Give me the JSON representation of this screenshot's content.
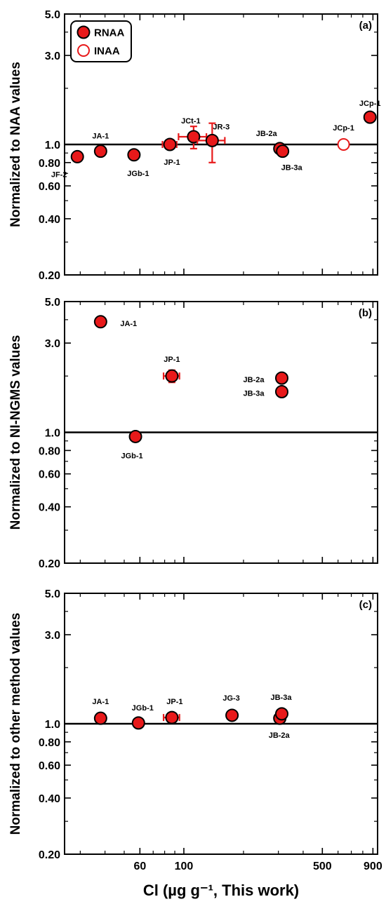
{
  "chart_data": [
    {
      "panel": "(a)",
      "type": "scatter",
      "ylabel": "Normalized to NAA values",
      "xscale": "log",
      "yscale": "log",
      "xlim": [
        25,
        950
      ],
      "ylim": [
        0.2,
        5.0
      ],
      "reference_line": 1.0,
      "legend": {
        "position": "top-left",
        "entries": [
          {
            "name": "RNAA",
            "style": "filled"
          },
          {
            "name": "INAA",
            "style": "open"
          }
        ]
      },
      "points": [
        {
          "label": "JF-2",
          "x": 29,
          "y": 0.86,
          "method": "RNAA"
        },
        {
          "label": "JA-1",
          "x": 38,
          "y": 0.92,
          "method": "RNAA"
        },
        {
          "label": "JGb-1",
          "x": 56,
          "y": 0.88,
          "method": "RNAA"
        },
        {
          "label": "JP-1",
          "x": 85,
          "y": 1.0,
          "method": "RNAA",
          "xerr": 7,
          "yerr": 0.05
        },
        {
          "label": "JCt-1",
          "x": 112,
          "y": 1.1,
          "method": "RNAA",
          "xerr": 18,
          "yerr": 0.15
        },
        {
          "label": "JR-3",
          "x": 139,
          "y": 1.05,
          "method": "RNAA",
          "xerr": 22,
          "yerr": 0.25
        },
        {
          "label": "JB-2a",
          "x": 305,
          "y": 0.95,
          "method": "RNAA"
        },
        {
          "label": "JB-3a",
          "x": 315,
          "y": 0.92,
          "method": "RNAA"
        },
        {
          "label": "JCp-1",
          "x": 640,
          "y": 1.0,
          "method": "INAA"
        },
        {
          "label": "JCp-1",
          "x": 870,
          "y": 1.4,
          "method": "RNAA"
        }
      ]
    },
    {
      "panel": "(b)",
      "type": "scatter",
      "ylabel": "Normalized to NI-NGMS values",
      "xscale": "log",
      "yscale": "log",
      "xlim": [
        25,
        950
      ],
      "ylim": [
        0.2,
        5.0
      ],
      "reference_line": 1.0,
      "points": [
        {
          "label": "JA-1",
          "x": 38,
          "y": 3.9,
          "method": "RNAA"
        },
        {
          "label": "JGb-1",
          "x": 57,
          "y": 0.95,
          "method": "RNAA"
        },
        {
          "label": "JP-1",
          "x": 87,
          "y": 2.0,
          "method": "RNAA",
          "xerr": 8,
          "yerr": 0.15
        },
        {
          "label": "JB-2a",
          "x": 312,
          "y": 1.95,
          "method": "RNAA"
        },
        {
          "label": "JB-3a",
          "x": 312,
          "y": 1.65,
          "method": "RNAA"
        }
      ]
    },
    {
      "panel": "(c)",
      "type": "scatter",
      "ylabel": "Normalized to other method values",
      "xscale": "log",
      "yscale": "log",
      "xlim": [
        25,
        950
      ],
      "ylim": [
        0.2,
        5.0
      ],
      "reference_line": 1.0,
      "points": [
        {
          "label": "JA-1",
          "x": 38,
          "y": 1.07,
          "method": "RNAA"
        },
        {
          "label": "JGb-1",
          "x": 59,
          "y": 1.01,
          "method": "RNAA"
        },
        {
          "label": "JP-1",
          "x": 87,
          "y": 1.08,
          "method": "RNAA",
          "xerr": 8,
          "yerr": 0.04
        },
        {
          "label": "JG-3",
          "x": 175,
          "y": 1.11,
          "method": "RNAA"
        },
        {
          "label": "JB-2a",
          "x": 305,
          "y": 1.07,
          "method": "RNAA"
        },
        {
          "label": "JB-3a",
          "x": 312,
          "y": 1.13,
          "method": "RNAA"
        }
      ]
    }
  ],
  "axes": {
    "y_ticks": [
      "5.0",
      "3.0",
      "1.0",
      "0.80",
      "0.60",
      "0.40",
      "0.20"
    ],
    "x_ticks": [
      "60",
      "100",
      "500",
      "900"
    ],
    "xlabel": "Cl (µg g⁻¹, This work)"
  },
  "colors": {
    "marker_fill": "#e8191a",
    "marker_edge": "#000000",
    "inaa_edge": "#e8191a",
    "error_bar": "#e8191a",
    "axes": "#000000"
  }
}
